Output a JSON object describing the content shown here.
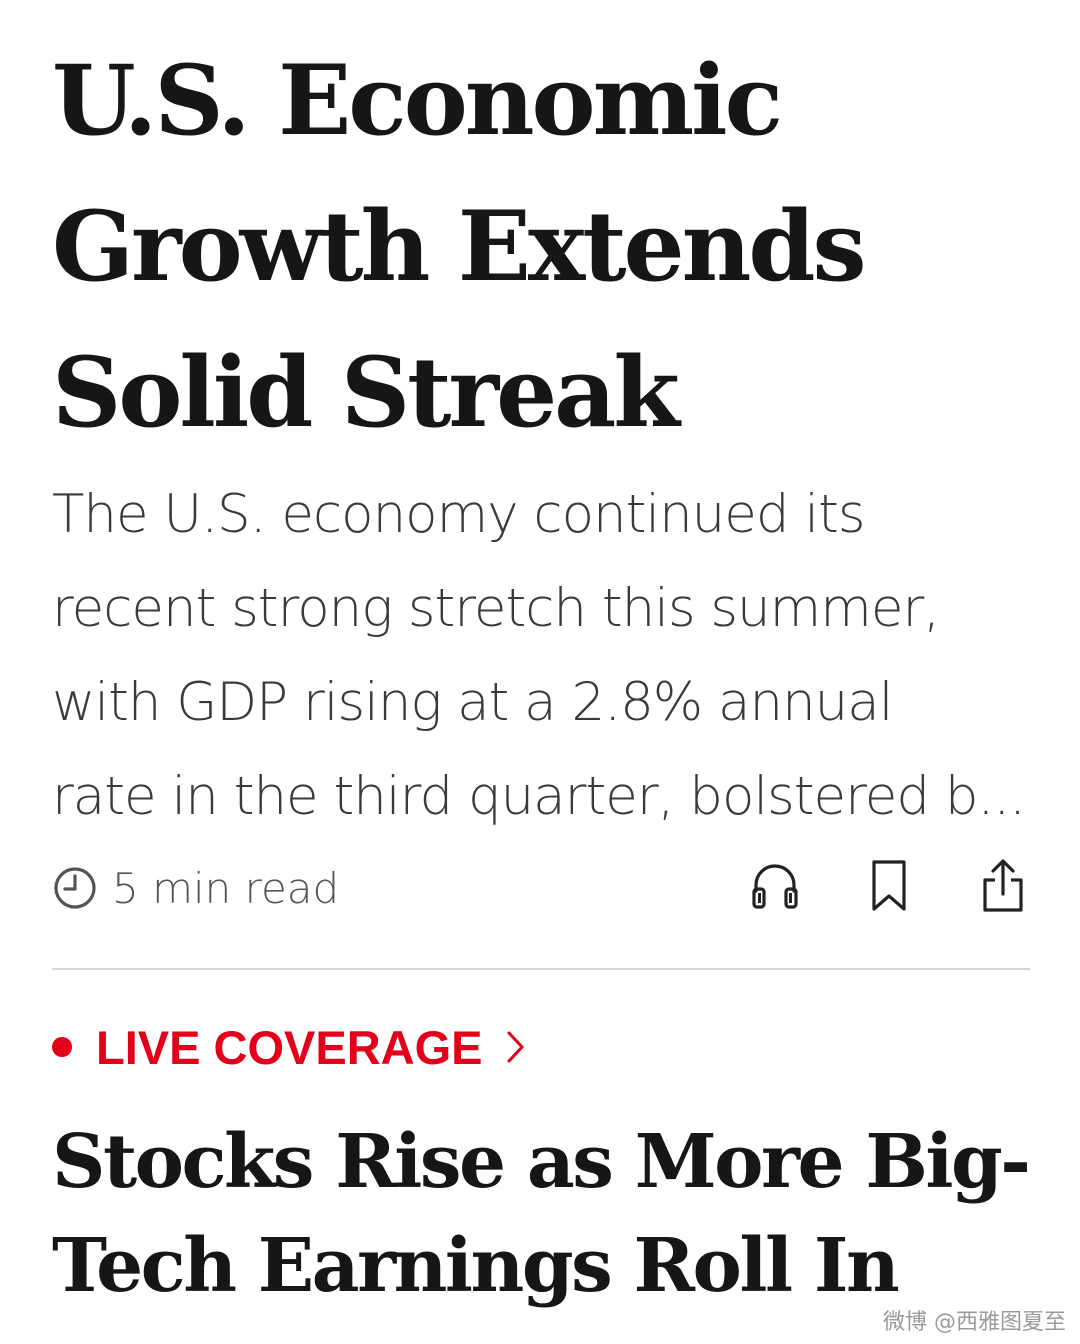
{
  "story_1": {
    "headline_lines": [
      "U.S. Economic",
      "Growth Extends",
      "Solid Streak"
    ],
    "summary_lines": [
      "The U.S. economy continued its",
      "recent strong stretch this summer,",
      "with GDP rising at a 2.8% annual",
      "rate in the third quarter, bolstered b..."
    ],
    "read_time": "5 min read",
    "icons": {
      "clock": "clock-icon",
      "listen": "headphones-icon",
      "save": "bookmark-icon",
      "share": "share-icon"
    }
  },
  "live": {
    "label": "LIVE COVERAGE",
    "color": "#e2001a"
  },
  "story_2": {
    "headline_lines": [
      "Stocks Rise as More Big-",
      "Tech Earnings Roll In"
    ]
  },
  "watermark": "微博 @西雅图夏至"
}
